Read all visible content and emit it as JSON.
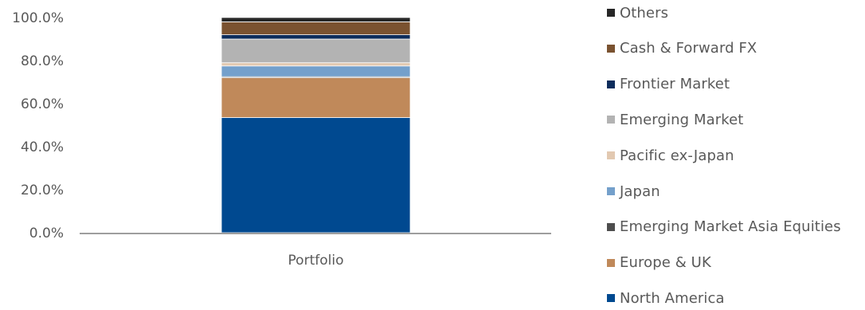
{
  "chart_data": {
    "type": "bar",
    "stacked": true,
    "categories": [
      "Portfolio"
    ],
    "ylim": [
      0,
      100
    ],
    "yticks": [
      "0.0%",
      "20.0%",
      "40.0%",
      "60.0%",
      "80.0%",
      "100.0%"
    ],
    "grid": false,
    "legend_position": "right",
    "series": [
      {
        "name": "North America",
        "values": [
          53.5
        ],
        "color": "#004990"
      },
      {
        "name": "Europe & UK",
        "values": [
          18.5
        ],
        "color": "#C0895A"
      },
      {
        "name": "Emerging Market Asia Equities",
        "values": [
          0.5
        ],
        "color": "#4D4D4D"
      },
      {
        "name": "Japan",
        "values": [
          5.0
        ],
        "color": "#74A0CB"
      },
      {
        "name": "Pacific ex-Japan",
        "values": [
          1.5
        ],
        "color": "#E2C9B1"
      },
      {
        "name": "Emerging Market",
        "values": [
          11.0
        ],
        "color": "#B3B3B3"
      },
      {
        "name": "Frontier Market",
        "values": [
          2.0
        ],
        "color": "#0D2D5C"
      },
      {
        "name": "Cash & Forward FX",
        "values": [
          6.0
        ],
        "color": "#7A5230"
      },
      {
        "name": "Others",
        "values": [
          2.0
        ],
        "color": "#262626"
      }
    ]
  }
}
